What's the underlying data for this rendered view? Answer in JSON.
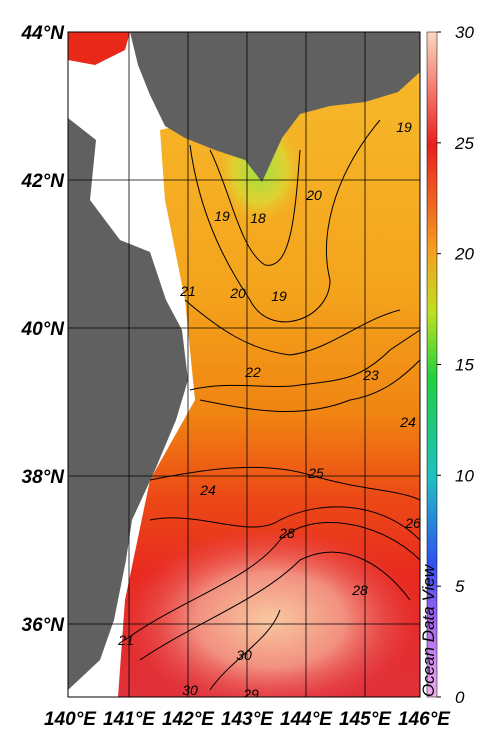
{
  "map": {
    "lat_labels": [
      "44°N",
      "42°N",
      "40°N",
      "38°N",
      "36°N"
    ],
    "lon_labels": [
      "140°E",
      "141°E",
      "142°E",
      "143°E",
      "144°E",
      "145°E",
      "146°E"
    ],
    "colorbar": {
      "ticks": [
        0,
        5,
        10,
        15,
        20,
        25,
        30
      ],
      "range": [
        0,
        30
      ]
    },
    "watermark": "Ocean Data View",
    "contour_labels": [
      19,
      18,
      19,
      20,
      20,
      19,
      21,
      22,
      23,
      24,
      25,
      24,
      28,
      26,
      28,
      30,
      29,
      30,
      21
    ]
  }
}
